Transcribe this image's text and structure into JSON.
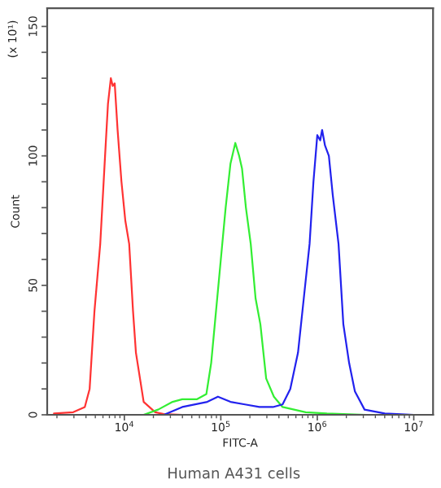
{
  "chart_data": {
    "type": "line",
    "xlabel": "FITC-A",
    "ylabel": "Count",
    "annotations": [
      "(x 10¹)",
      "Human A431 cells"
    ],
    "log": "x",
    "grid": false,
    "legend": false,
    "xlim": [
      1585,
      15850000
    ],
    "xticks": [
      {
        "value": 10000,
        "label": "10$^{4}$"
      },
      {
        "value": 100000,
        "label": "10$^{5}$"
      },
      {
        "value": 1000000,
        "label": "10$^{6}$"
      },
      {
        "value": 10000000,
        "label": "10$^{7}$"
      }
    ],
    "ylim": [
      0,
      157
    ],
    "yticks": [
      0,
      {
        "value": 10,
        "label": null
      },
      {
        "value": 20,
        "label": null
      },
      {
        "value": 30,
        "label": null
      },
      {
        "value": 40,
        "label": null
      },
      50,
      {
        "value": 60,
        "label": null
      },
      {
        "value": 70,
        "label": null
      },
      {
        "value": 80,
        "label": null
      },
      {
        "value": 90,
        "label": null
      },
      100,
      {
        "value": 110,
        "label": null
      },
      {
        "value": 120,
        "label": null
      },
      {
        "value": 130,
        "label": null
      },
      {
        "value": 140,
        "label": null
      },
      150
    ],
    "series": [
      {
        "color": "#ff3333",
        "x": [
          1862,
          2951,
          3890,
          4365,
          4898,
          5623,
          6310,
          6761,
          7244,
          7586,
          7943,
          8511,
          9333,
          10230,
          11220,
          12300,
          13180,
          15850,
          20890,
          25700,
          39810
        ],
        "values": [
          0.5,
          1,
          3,
          10,
          40,
          66,
          100,
          120,
          130,
          127,
          128,
          110,
          90,
          75,
          66,
          40,
          24,
          5,
          1,
          0.3,
          0
        ]
      },
      {
        "color": "#33ee33",
        "x": [
          15850,
          22390,
          31620,
          39810,
          56230,
          70790,
          79430,
          89130,
          100000,
          112200,
          125900,
          141300,
          154900,
          166000,
          182000,
          204200,
          229100,
          257000,
          295100,
          354800,
          436500,
          758600,
          1259000,
          3162000
        ],
        "values": [
          0,
          2,
          5,
          6,
          6,
          8,
          20,
          40,
          60,
          80,
          97,
          105,
          100,
          95,
          80,
          66,
          45,
          35,
          14,
          7,
          3,
          1,
          0.5,
          0
        ]
      },
      {
        "color": "#2222ee",
        "x": [
          25700,
          39810,
          72440,
          93330,
          125900,
          177800,
          251200,
          346700,
          436500,
          524800,
          631000,
          724400,
          831800,
          912000,
          1000000,
          1072000,
          1122000,
          1202000,
          1318000,
          1445000,
          1660000,
          1862000,
          2138000,
          2455000,
          3090000,
          5012000,
          10000000
        ],
        "values": [
          0,
          3,
          5,
          7,
          5,
          4,
          3,
          3,
          4,
          10,
          24,
          45,
          66,
          90,
          108,
          106,
          110,
          104,
          100,
          85,
          66,
          35,
          20,
          9,
          2,
          0.5,
          0
        ]
      }
    ]
  }
}
